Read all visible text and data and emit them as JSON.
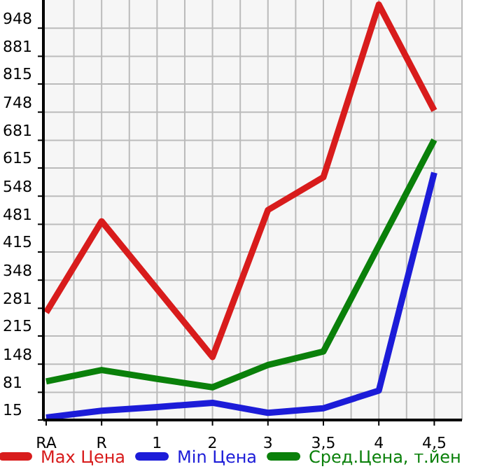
{
  "chart_data": {
    "type": "line",
    "categories": [
      "RA",
      "R",
      "1",
      "2",
      "3",
      "3,5",
      "4",
      "4,5"
    ],
    "series": [
      {
        "name": "Max Цена",
        "color": "#d81c1c",
        "values": [
          271,
          488,
          327,
          165,
          515,
          593,
          1004,
          752
        ]
      },
      {
        "name": "Min Цена",
        "color": "#1c1cd8",
        "values": [
          21,
          37,
          46,
          56,
          32,
          43,
          85,
          604
        ]
      },
      {
        "name": "Сред.Цена, т.йен",
        "color": "#0a800a",
        "values": [
          107,
          134,
          113,
          93,
          146,
          178,
          430,
          682
        ]
      }
    ],
    "ylim": [
      15,
      1015
    ],
    "yticks": [
      15,
      81,
      148,
      215,
      281,
      348,
      415,
      481,
      548,
      615,
      681,
      748,
      815,
      881,
      948
    ],
    "grid": true,
    "legend": "bottom",
    "marker": "none",
    "line_style": "solid"
  }
}
